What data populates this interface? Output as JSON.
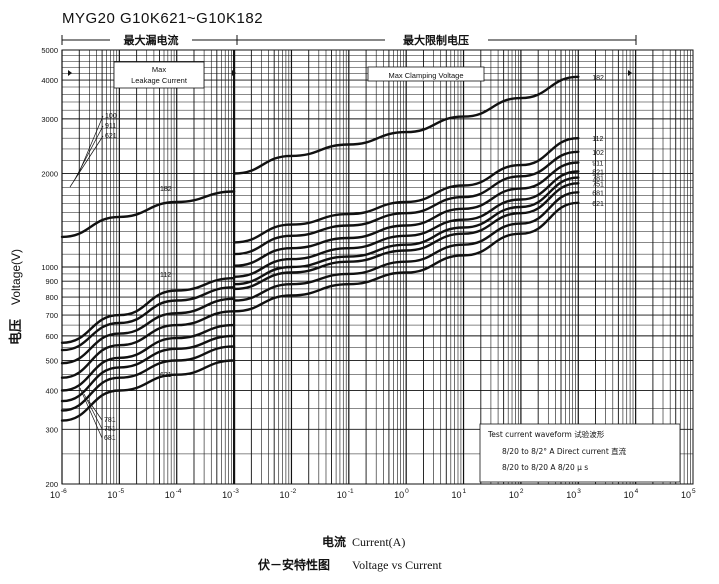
{
  "chart_data": {
    "type": "line",
    "title": "MYG20   G10K621~G10K182",
    "region_labels": {
      "leakage_cn": "最大漏电流",
      "leakage_en_line1": "Max",
      "leakage_en_line2": "Leakage Current",
      "clamping_cn": "最大限制电压",
      "clamping_en": "Max Clamping Voltage"
    },
    "xlabel_cn": "电流",
    "xlabel_en": "Current(A)",
    "ylabel_cn": "电压",
    "ylabel_en": "Voltage(V)",
    "caption_cn": "伏－安特性图",
    "caption_en": "Voltage vs Current",
    "x_scale": "log",
    "y_scale": "log",
    "xlim": [
      1e-06,
      100000.0
    ],
    "ylim": [
      200,
      5000
    ],
    "x_ticks": [
      {
        "v": 1e-06,
        "b": "10",
        "e": "-6"
      },
      {
        "v": 1e-05,
        "b": "10",
        "e": "-5"
      },
      {
        "v": 0.0001,
        "b": "10",
        "e": "-4"
      },
      {
        "v": 0.001,
        "b": "10",
        "e": "-3"
      },
      {
        "v": 0.01,
        "b": "10",
        "e": "-2"
      },
      {
        "v": 0.1,
        "b": "10",
        "e": "-1"
      },
      {
        "v": 1,
        "b": "10",
        "e": "0"
      },
      {
        "v": 10,
        "b": "10",
        "e": "1"
      },
      {
        "v": 100,
        "b": "10",
        "e": "2"
      },
      {
        "v": 1000,
        "b": "10",
        "e": "3"
      },
      {
        "v": 10000,
        "b": "10",
        "e": "4"
      },
      {
        "v": 100000,
        "b": "10",
        "e": "5"
      }
    ],
    "y_ticks": [
      200,
      300,
      400,
      500,
      600,
      700,
      800,
      900,
      1000,
      2000,
      3000,
      4000,
      5000
    ],
    "y_tick_labels": [
      "200",
      "300",
      "400",
      "500",
      "600",
      "700",
      "800",
      "900",
      "1000",
      "2000",
      "3000",
      "4000",
      "5000"
    ],
    "grid": true,
    "test_box": {
      "title": "Test current waveform 试验波形",
      "line1": "8/20 to 8/2° A Direct current 直流",
      "line2": "8/20 to 8/20 A 8/20 µ s"
    },
    "leakage_series": [
      {
        "name": "182",
        "points": [
          [
            1e-06,
            1250
          ],
          [
            1e-05,
            1450
          ],
          [
            0.0001,
            1620
          ],
          [
            0.001,
            1750
          ]
        ]
      },
      {
        "name": "112",
        "points": [
          [
            1e-06,
            570
          ],
          [
            1e-05,
            700
          ],
          [
            0.0001,
            840
          ],
          [
            0.001,
            920
          ]
        ]
      },
      {
        "name": "102",
        "points": [
          [
            1e-06,
            540
          ],
          [
            1e-05,
            660
          ],
          [
            0.0001,
            780
          ],
          [
            0.001,
            860
          ]
        ]
      },
      {
        "name": "911",
        "points": [
          [
            1e-06,
            490
          ],
          [
            1e-05,
            610
          ],
          [
            0.0001,
            710
          ],
          [
            0.001,
            790
          ]
        ]
      },
      {
        "name": "821",
        "points": [
          [
            1e-06,
            440
          ],
          [
            1e-05,
            560
          ],
          [
            0.0001,
            650
          ],
          [
            0.001,
            720
          ]
        ]
      },
      {
        "name": "781",
        "points": [
          [
            1e-06,
            400
          ],
          [
            1e-05,
            510
          ],
          [
            0.0001,
            590
          ],
          [
            0.001,
            650
          ]
        ]
      },
      {
        "name": "751",
        "points": [
          [
            1e-06,
            370
          ],
          [
            1e-05,
            475
          ],
          [
            0.0001,
            545
          ],
          [
            0.001,
            600
          ]
        ]
      },
      {
        "name": "681",
        "points": [
          [
            1e-06,
            345
          ],
          [
            1e-05,
            440
          ],
          [
            0.0001,
            500
          ],
          [
            0.001,
            555
          ]
        ]
      },
      {
        "name": "621",
        "points": [
          [
            1e-06,
            320
          ],
          [
            1e-05,
            400
          ],
          [
            0.0001,
            450
          ],
          [
            0.001,
            500
          ]
        ]
      }
    ],
    "clamping_series": [
      {
        "name": "182",
        "points": [
          [
            0.001,
            2000
          ],
          [
            0.01,
            2280
          ],
          [
            0.1,
            2480
          ],
          [
            1,
            2720
          ],
          [
            10,
            3050
          ],
          [
            100,
            3500
          ],
          [
            1000,
            4100
          ]
        ]
      },
      {
        "name": "112",
        "points": [
          [
            0.001,
            1200
          ],
          [
            0.01,
            1370
          ],
          [
            0.1,
            1480
          ],
          [
            1,
            1620
          ],
          [
            10,
            1830
          ],
          [
            100,
            2130
          ],
          [
            1000,
            2600
          ]
        ]
      },
      {
        "name": "102",
        "points": [
          [
            0.001,
            1100
          ],
          [
            0.01,
            1260
          ],
          [
            0.1,
            1360
          ],
          [
            1,
            1490
          ],
          [
            10,
            1680
          ],
          [
            100,
            1960
          ],
          [
            1000,
            2350
          ]
        ]
      },
      {
        "name": "911",
        "points": [
          [
            0.001,
            1010
          ],
          [
            0.01,
            1150
          ],
          [
            0.1,
            1240
          ],
          [
            1,
            1360
          ],
          [
            10,
            1540
          ],
          [
            100,
            1790
          ],
          [
            1000,
            2170
          ]
        ]
      },
      {
        "name": "821",
        "points": [
          [
            0.001,
            930
          ],
          [
            0.01,
            1060
          ],
          [
            0.1,
            1150
          ],
          [
            1,
            1260
          ],
          [
            10,
            1420
          ],
          [
            100,
            1650
          ],
          [
            1000,
            2030
          ]
        ]
      },
      {
        "name": "781",
        "points": [
          [
            0.001,
            880
          ],
          [
            0.01,
            1000
          ],
          [
            0.1,
            1080
          ],
          [
            1,
            1180
          ],
          [
            10,
            1340
          ],
          [
            100,
            1560
          ],
          [
            1000,
            1940
          ]
        ]
      },
      {
        "name": "751",
        "points": [
          [
            0.001,
            850
          ],
          [
            0.01,
            960
          ],
          [
            0.1,
            1040
          ],
          [
            1,
            1130
          ],
          [
            10,
            1280
          ],
          [
            100,
            1490
          ],
          [
            1000,
            1860
          ]
        ]
      },
      {
        "name": "681",
        "points": [
          [
            0.001,
            780
          ],
          [
            0.01,
            880
          ],
          [
            0.1,
            950
          ],
          [
            1,
            1040
          ],
          [
            10,
            1180
          ],
          [
            100,
            1380
          ],
          [
            1000,
            1740
          ]
        ]
      },
      {
        "name": "621",
        "points": [
          [
            0.001,
            720
          ],
          [
            0.01,
            810
          ],
          [
            0.1,
            880
          ],
          [
            1,
            960
          ],
          [
            10,
            1090
          ],
          [
            100,
            1280
          ],
          [
            1000,
            1610
          ]
        ]
      }
    ],
    "left_upper_labels": [
      "100",
      "911",
      "621"
    ],
    "left_lower_labels": [
      "781",
      "751",
      "681"
    ],
    "mid_labels": [
      "182",
      "112",
      "621"
    ],
    "right_labels": [
      "182",
      "112",
      "102",
      "911",
      "821",
      "781",
      "751",
      "681",
      "621"
    ]
  }
}
